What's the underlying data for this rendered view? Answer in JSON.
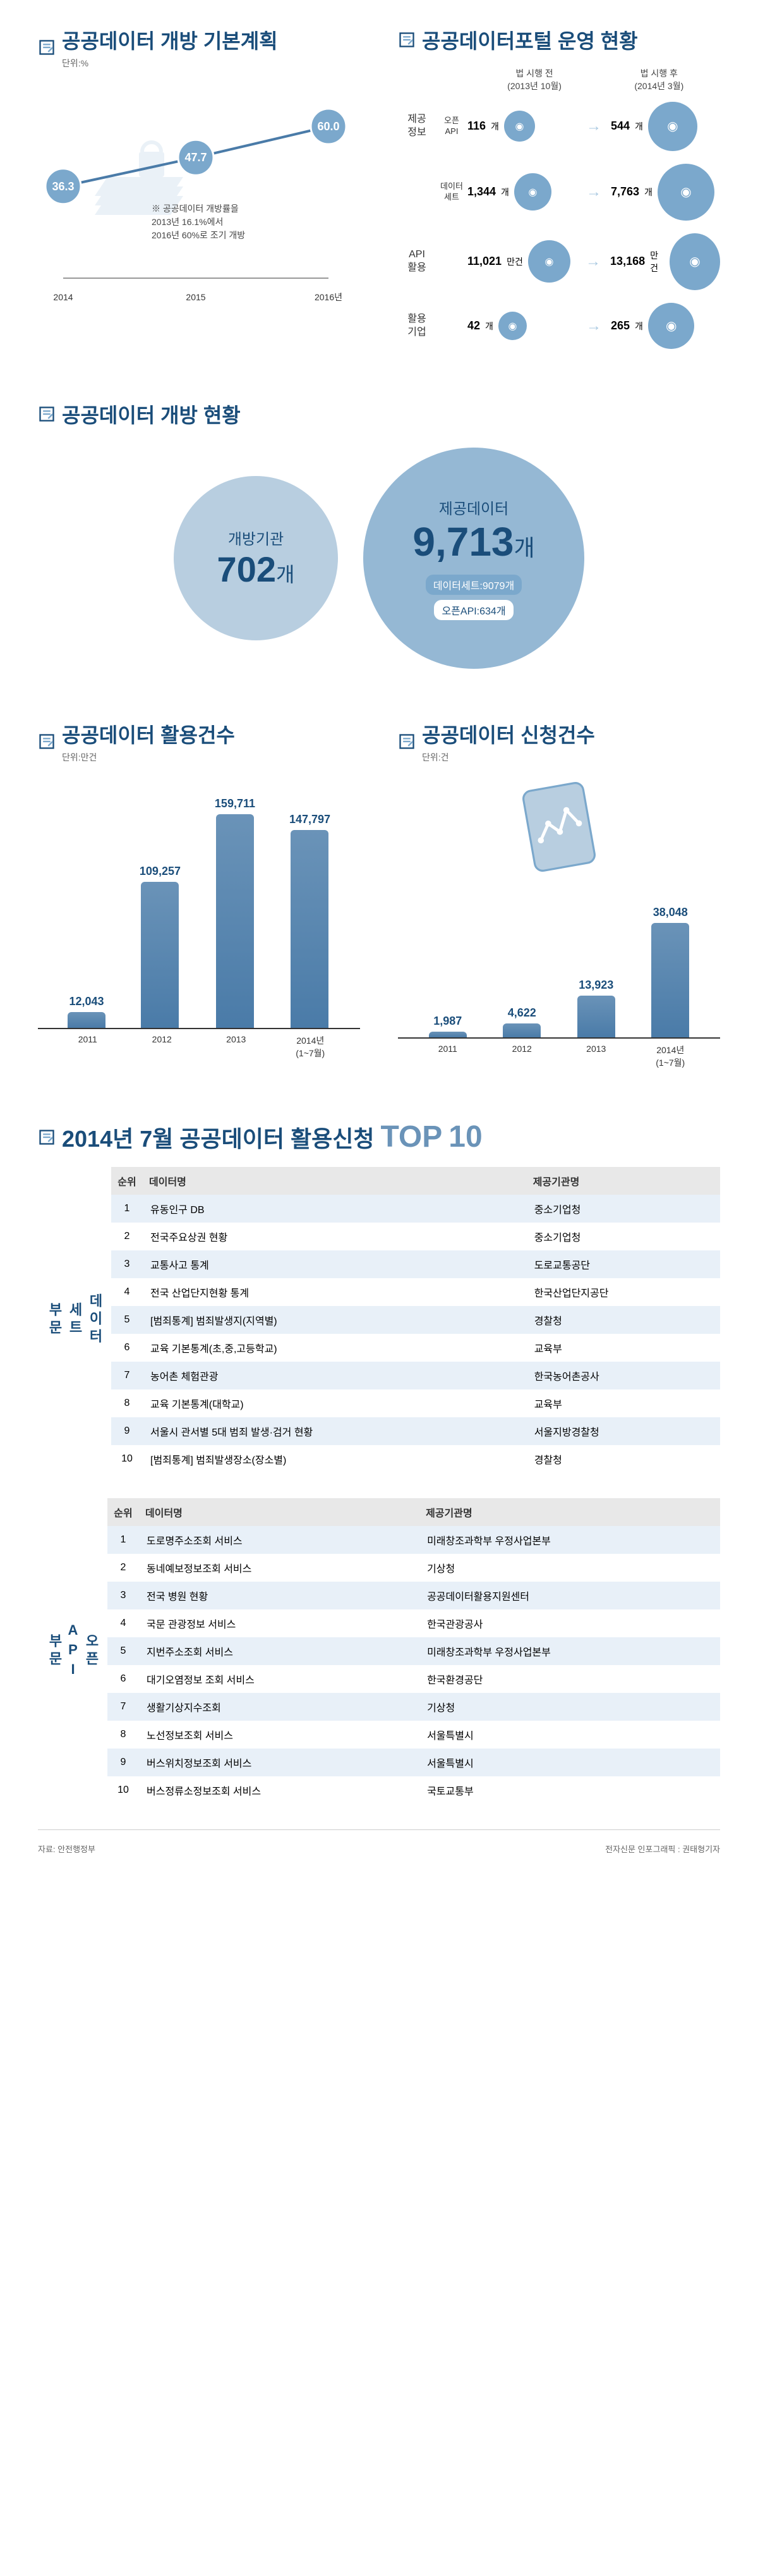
{
  "colors": {
    "primary": "#1a4d7a",
    "accent": "#7ba8cc",
    "light": "#95b8d4",
    "bg_alt": "#e8f0f8",
    "text": "#333"
  },
  "plan": {
    "title": "공공데이터 개방 기본계획",
    "unit": "단위:%",
    "note": "※ 공공데이터 개방률을\n2013년 16.1%에서\n2016년 60%로 조기 개방",
    "years": [
      "2014",
      "2015",
      "2016년"
    ],
    "values": [
      36.3,
      47.7,
      60.0
    ],
    "ylim": [
      0,
      70
    ],
    "line_color": "#4a7ba8",
    "point_color": "#7ba8cc",
    "point_label_fontsize": 18
  },
  "portal": {
    "title": "공공데이터포털 운영 현황",
    "before_label": "법 시행 전\n(2013년 10월)",
    "after_label": "법 시행 후\n(2014년 3월)",
    "rows": [
      {
        "group": "제공\n정보",
        "sub": "오픈\nAPI",
        "before": "116",
        "before_unit": "개",
        "after": "544",
        "after_unit": "개",
        "icon": "globe"
      },
      {
        "group": "",
        "sub": "데이터\n세트",
        "before": "1,344",
        "before_unit": "개",
        "after": "7,763",
        "after_unit": "개",
        "icon": "mouse"
      },
      {
        "group": "API\n활용",
        "sub": "",
        "before": "11,021",
        "before_unit": "만건",
        "after": "13,168",
        "after_unit": "만건",
        "icon": "user"
      },
      {
        "group": "활용\n기업",
        "sub": "",
        "before": "42",
        "before_unit": "개",
        "after": "265",
        "after_unit": "개",
        "icon": "laptop"
      }
    ]
  },
  "status": {
    "title": "공공데이터 개방 현황",
    "circle1": {
      "label": "개방기관",
      "value": "702",
      "unit": "개",
      "size": 260,
      "bg": "#b8cee0"
    },
    "circle2": {
      "label": "제공데이터",
      "value": "9,713",
      "unit": "개",
      "sub1": "데이터세트:9079개",
      "sub2": "오픈API:634개",
      "size": 350,
      "bg": "#95b8d4"
    }
  },
  "usage": {
    "title": "공공데이터 활용건수",
    "unit": "단위:만건",
    "years": [
      "2011",
      "2012",
      "2013",
      "2014년\n(1~7월)"
    ],
    "values": [
      12043,
      109257,
      159711,
      147797
    ],
    "ymax": 170000,
    "bar_color": "#6a93b8"
  },
  "requests": {
    "title": "공공데이터 신청건수",
    "unit": "단위:건",
    "years": [
      "2011",
      "2012",
      "2013",
      "2014년\n(1~7월)"
    ],
    "values": [
      1987,
      4622,
      13923,
      38048
    ],
    "ymax": 42000,
    "bar_color": "#6a93b8"
  },
  "top10": {
    "title_prefix": "2014년 7월 공공데이터 활용신청",
    "title_top": "TOP",
    "title_num": "10",
    "headers": [
      "순위",
      "데이터명",
      "제공기관명"
    ],
    "dataset_label": "데이터\n세트\n부문",
    "api_label": "오픈\nAPI\n부문",
    "dataset": [
      [
        "1",
        "유동인구 DB",
        "중소기업청"
      ],
      [
        "2",
        "전국주요상권 현황",
        "중소기업청"
      ],
      [
        "3",
        "교통사고 통계",
        "도로교통공단"
      ],
      [
        "4",
        "전국 산업단지현황 통계",
        "한국산업단지공단"
      ],
      [
        "5",
        "[범죄통계] 범죄발생지(지역별)",
        "경찰청"
      ],
      [
        "6",
        "교육 기본통계(초,중,고등학교)",
        "교육부"
      ],
      [
        "7",
        "농어촌 체험관광",
        "한국농어촌공사"
      ],
      [
        "8",
        "교육 기본통계(대학교)",
        "교육부"
      ],
      [
        "9",
        "서울시 관서별 5대 범죄 발생·검거 현황",
        "서울지방경찰청"
      ],
      [
        "10",
        "[범죄통계] 범죄발생장소(장소별)",
        "경찰청"
      ]
    ],
    "api": [
      [
        "1",
        "도로명주소조회 서비스",
        "미래창조과학부 우정사업본부"
      ],
      [
        "2",
        "동네예보정보조회 서비스",
        "기상청"
      ],
      [
        "3",
        "전국 병원 현황",
        "공공데이터활용지원센터"
      ],
      [
        "4",
        "국문 관광정보 서비스",
        "한국관광공사"
      ],
      [
        "5",
        "지번주소조회 서비스",
        "미래창조과학부 우정사업본부"
      ],
      [
        "6",
        "대기오염정보 조회 서비스",
        "한국환경공단"
      ],
      [
        "7",
        "생활기상지수조회",
        "기상청"
      ],
      [
        "8",
        "노선정보조회 서비스",
        "서울특별시"
      ],
      [
        "9",
        "버스위치정보조회 서비스",
        "서울특별시"
      ],
      [
        "10",
        "버스정류소정보조회 서비스",
        "국토교통부"
      ]
    ]
  },
  "footer": {
    "source": "자료: 안전행정부",
    "credit": "전자신문 인포그래픽 : 권태형기자"
  }
}
